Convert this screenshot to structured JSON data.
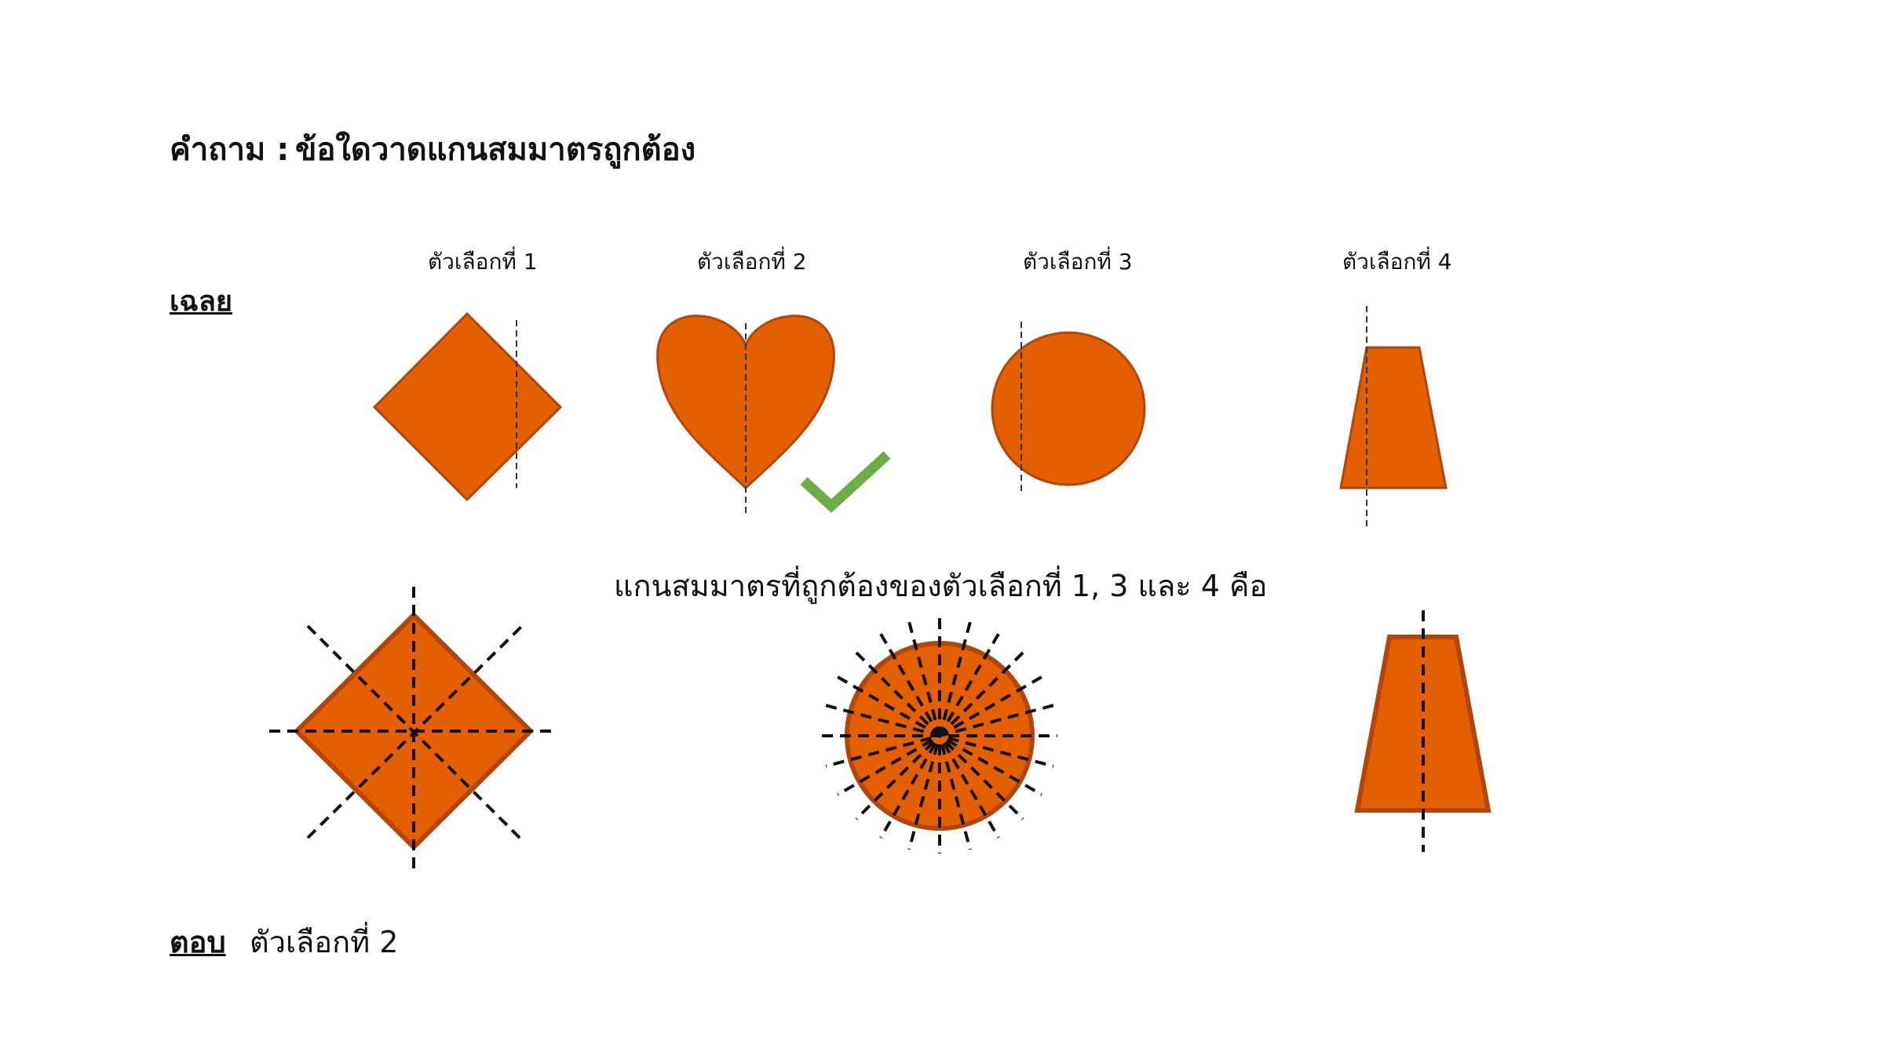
{
  "question": {
    "prefix": "คำถาม :",
    "text": "ข้อใดวาดแกนสมมาตรถูกต้อง"
  },
  "solution_label": "เฉลย",
  "options": [
    {
      "label": "ตัวเลือกที่ 1",
      "shape": "diamond"
    },
    {
      "label": "ตัวเลือกที่ 2",
      "shape": "heart",
      "correct": true
    },
    {
      "label": "ตัวเลือกที่ 3",
      "shape": "circle"
    },
    {
      "label": "ตัวเลือกที่ 4",
      "shape": "trapezoid"
    }
  ],
  "explanation": "แกนสมมาตรที่ถูกต้องของตัวเลือกที่ 1, 3 และ 4 คือ",
  "answer": {
    "label": "ตอบ",
    "value": "ตัวเลือกที่ 2"
  },
  "colors": {
    "shape_fill": "#E35F00",
    "shape_stroke": "#B2460C",
    "axis_line_top": "#1F3A6B",
    "axis_line_bottom": "#111111",
    "checkmark": "#6AAE45"
  },
  "icons": {
    "correct_mark": "checkmark-icon"
  }
}
